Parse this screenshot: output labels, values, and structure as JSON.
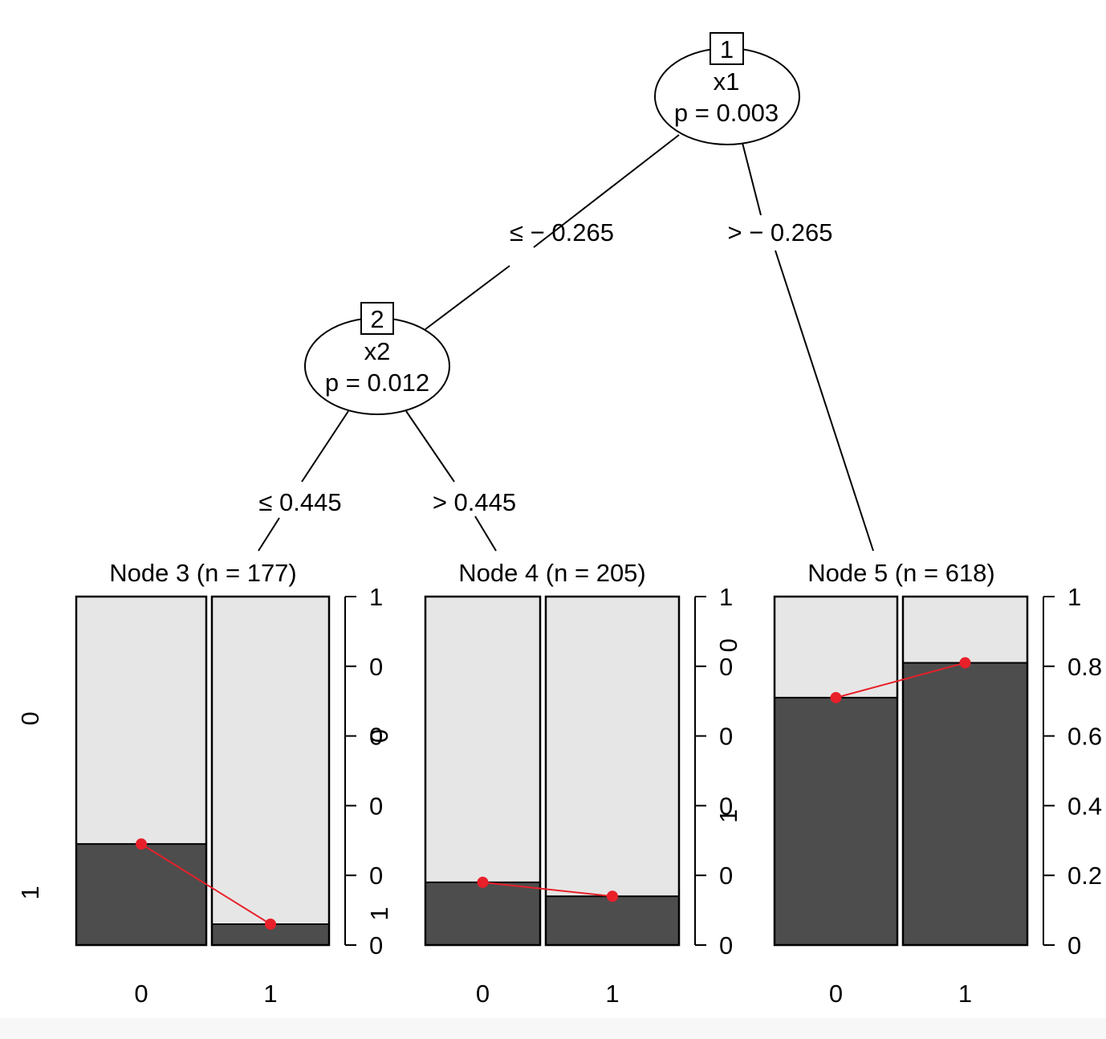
{
  "tree": {
    "inner_nodes": [
      {
        "id": "1",
        "variable": "x1",
        "p_text": "p = 0.003"
      },
      {
        "id": "2",
        "variable": "x2",
        "p_text": "p = 0.012"
      }
    ],
    "edges": [
      {
        "label": "≤ − 0.265"
      },
      {
        "label": "> − 0.265"
      },
      {
        "label": "≤ 0.445"
      },
      {
        "label": "> 0.445"
      }
    ]
  },
  "chart_data": [
    {
      "type": "bar",
      "stacked": true,
      "title": "Node 3 (n = 177)",
      "categories": [
        "0",
        "1"
      ],
      "series": [
        {
          "name": "1",
          "values": [
            0.29,
            0.06
          ]
        },
        {
          "name": "0",
          "values": [
            0.71,
            0.94
          ]
        }
      ],
      "trend": [
        0.29,
        0.06
      ],
      "ylim": [
        0,
        1
      ],
      "right_ticks": [
        "0",
        "0",
        "0",
        "0",
        "0",
        "1"
      ],
      "left_labels": [
        "0",
        "1"
      ],
      "overlay_labels": [
        {
          "text": "0",
          "at": 0.6
        },
        {
          "text": "1",
          "at": 0.09
        }
      ]
    },
    {
      "type": "bar",
      "stacked": true,
      "title": "Node 4 (n = 205)",
      "categories": [
        "0",
        "1"
      ],
      "series": [
        {
          "name": "1",
          "values": [
            0.18,
            0.14
          ]
        },
        {
          "name": "0",
          "values": [
            0.82,
            0.86
          ]
        }
      ],
      "trend": [
        0.18,
        0.14
      ],
      "ylim": [
        0,
        1
      ],
      "right_ticks": [
        "0",
        "0",
        "0",
        "0",
        "0",
        "1"
      ],
      "overlay_labels": [
        {
          "text": "0",
          "at": 0.86
        },
        {
          "text": "1",
          "at": 0.37
        }
      ]
    },
    {
      "type": "bar",
      "stacked": true,
      "title": "Node 5 (n = 618)",
      "categories": [
        "0",
        "1"
      ],
      "series": [
        {
          "name": "1",
          "values": [
            0.71,
            0.81
          ]
        },
        {
          "name": "0",
          "values": [
            0.29,
            0.19
          ]
        }
      ],
      "trend": [
        0.71,
        0.81
      ],
      "ylim": [
        0,
        1
      ],
      "right_ticks": [
        "0",
        "0.2",
        "0.4",
        "0.6",
        "0.8",
        "1"
      ]
    }
  ],
  "colors": {
    "dark_bar": "#4d4d4d",
    "light_bar": "#e6e6e6",
    "trend_line": "#e8202a",
    "ink": "#000000"
  }
}
